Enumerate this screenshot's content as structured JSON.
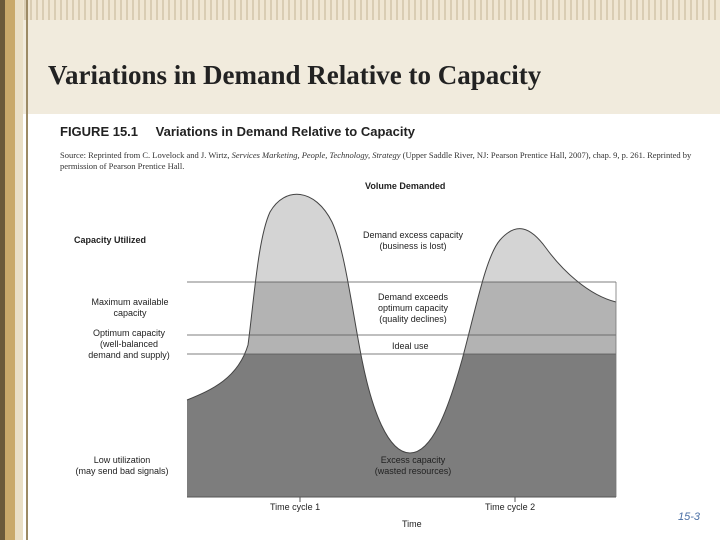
{
  "slide": {
    "title": "Variations in Demand Relative to Capacity",
    "page_number": "15-3"
  },
  "figure": {
    "number": "FIGURE 15.1",
    "title": "Variations in Demand Relative to Capacity",
    "source_prefix": "Source: Reprinted from C. Lovelock and J. Wirtz, ",
    "source_italic": "Services Marketing, People, Technology, Strategy",
    "source_suffix": " (Upper Saddle River, NJ: Pearson Prentice Hall, 2007), chap. 9, p. 261. Reprinted by permission of Pearson Prentice Hall.",
    "y_axis_title": "Capacity Utilized",
    "curve_title": "Volume Demanded",
    "x_axis_title": "Time",
    "levels": {
      "maximum": "Maximum available\ncapacity",
      "optimum": "Optimum capacity\n(well-balanced\ndemand and supply)",
      "low": "Low utilization\n(may send bad signals)"
    },
    "zones": {
      "excess_demand": "Demand excess capacity\n(business is lost)",
      "exceeds_optimum": "Demand exceeds\noptimum capacity\n(quality declines)",
      "ideal": "Ideal use",
      "excess_capacity": "Excess capacity\n(wasted resources)"
    },
    "time_cycles": [
      "Time cycle 1",
      "Time cycle 2"
    ],
    "colors": {
      "peak_fill": "#d4d4d4",
      "band_fill": "#b3b3b3",
      "lower_fill": "#7d7d7d",
      "level_line": "#555555"
    }
  }
}
